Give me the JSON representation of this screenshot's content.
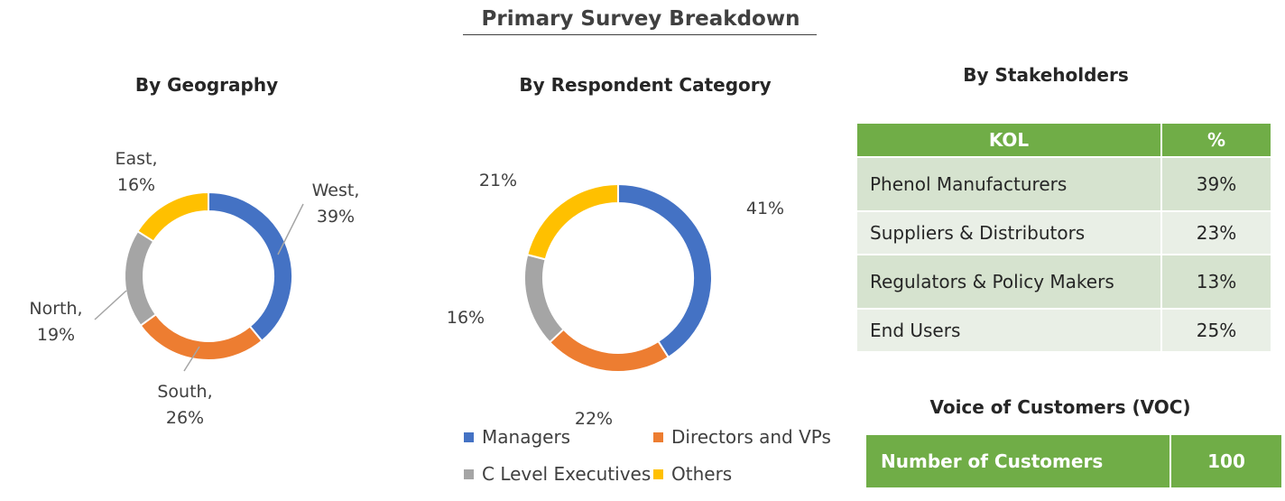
{
  "title": "Primary Survey Breakdown",
  "colors": {
    "blue": "#4472c4",
    "orange": "#ed7d31",
    "gray": "#a5a5a5",
    "yellow": "#ffc000",
    "green": "#70ad47"
  },
  "chart_data": [
    {
      "type": "pie",
      "title": "By Geography",
      "categories": [
        "West",
        "South",
        "North",
        "East"
      ],
      "values": [
        39,
        26,
        19,
        16
      ],
      "labels": [
        [
          "West,",
          "39%"
        ],
        [
          "South,",
          "26%"
        ],
        [
          "North,",
          "19%"
        ],
        [
          "East,",
          "16%"
        ]
      ],
      "colors": [
        "#4472c4",
        "#ed7d31",
        "#a5a5a5",
        "#ffc000"
      ],
      "legend": "none"
    },
    {
      "type": "pie",
      "title": "By Respondent Category",
      "categories": [
        "Managers",
        "Directors and VPs",
        "C Level Executives",
        "Others"
      ],
      "values": [
        41,
        22,
        16,
        21
      ],
      "labels": [
        "41%",
        "22%",
        "16%",
        "21%"
      ],
      "colors": [
        "#4472c4",
        "#ed7d31",
        "#a5a5a5",
        "#ffc000"
      ],
      "legend": "bottom"
    },
    {
      "type": "table",
      "title": "By Stakeholders",
      "columns": [
        "KOL",
        "%"
      ],
      "rows": [
        [
          "Phenol Manufacturers",
          "39%"
        ],
        [
          "Suppliers & Distributors",
          "23%"
        ],
        [
          "Regulators & Policy Makers",
          "13%"
        ],
        [
          "End Users",
          "25%"
        ]
      ]
    },
    {
      "type": "table",
      "title": "Voice of Customers (VOC)",
      "rows": [
        [
          "Number of Customers",
          "100"
        ]
      ]
    }
  ]
}
